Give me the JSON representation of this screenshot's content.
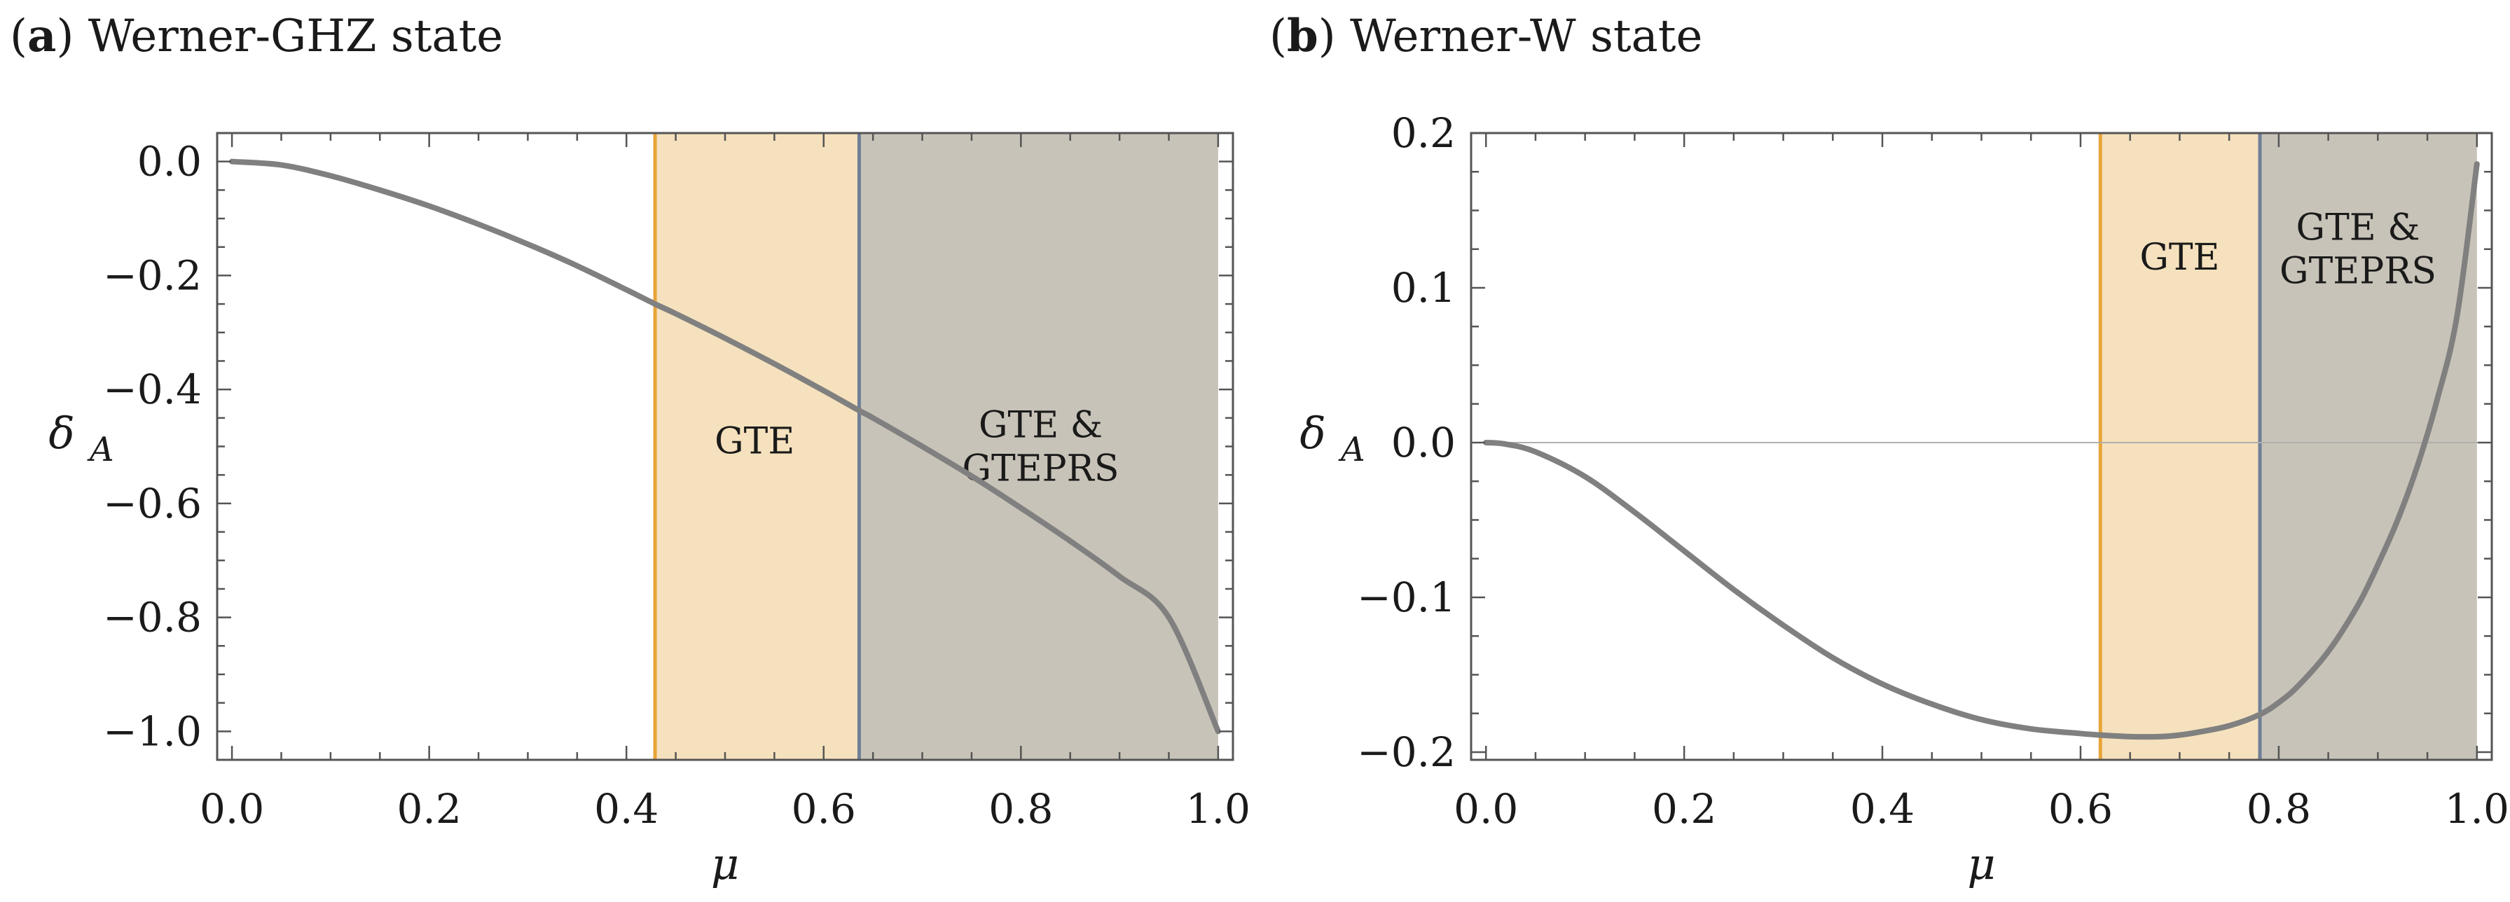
{
  "chart_data": [
    {
      "panel": "a",
      "type": "line",
      "panel_letter": "a",
      "title": "Werner-GHZ state",
      "xlabel": "μ",
      "ylabel_main": "δ",
      "ylabel_sub": "A",
      "xlim": [
        0,
        1
      ],
      "ylim": [
        -1.05,
        0.05
      ],
      "x_ticks": [
        0.0,
        0.2,
        0.4,
        0.6,
        0.8,
        1.0
      ],
      "x_tick_labels": [
        "0.0",
        "0.2",
        "0.4",
        "0.6",
        "0.8",
        "1.0"
      ],
      "y_ticks": [
        0.0,
        -0.2,
        -0.4,
        -0.6,
        -0.8,
        -1.0
      ],
      "y_tick_labels": [
        "0.0",
        "−0.2",
        "−0.4",
        "−0.6",
        "−0.8",
        "−1.0"
      ],
      "zero_line": false,
      "regions": [
        {
          "name": "GTE",
          "label_lines": [
            "GTE"
          ],
          "x_start": 0.429,
          "x_end": 0.636,
          "fill": "#f5e1bd",
          "boundary_color": "#e8a43a",
          "label_pos": [
            0.53,
            -0.49
          ]
        },
        {
          "name": "GTE & GTEPRS",
          "label_lines": [
            "GTE &",
            "GTEPRS"
          ],
          "x_start": 0.636,
          "x_end": 1.0,
          "fill": "#c8c3b8",
          "boundary_color": "#6f7f97",
          "label_pos": [
            0.82,
            -0.5
          ]
        }
      ],
      "series": [
        {
          "name": "δ_A",
          "color": "#808080",
          "x": [
            0.0,
            0.05,
            0.1,
            0.15,
            0.2,
            0.25,
            0.3,
            0.35,
            0.4,
            0.429,
            0.45,
            0.5,
            0.55,
            0.6,
            0.636,
            0.65,
            0.7,
            0.75,
            0.8,
            0.85,
            0.9,
            0.95,
            1.0
          ],
          "y": [
            0.0,
            -0.006,
            -0.025,
            -0.05,
            -0.078,
            -0.11,
            -0.145,
            -0.183,
            -0.225,
            -0.25,
            -0.267,
            -0.31,
            -0.355,
            -0.402,
            -0.437,
            -0.45,
            -0.5,
            -0.552,
            -0.608,
            -0.666,
            -0.728,
            -0.8,
            -1.0
          ]
        }
      ]
    },
    {
      "panel": "b",
      "type": "line",
      "panel_letter": "b",
      "title": "Werner-W state",
      "xlabel": "μ",
      "ylabel_main": "δ",
      "ylabel_sub": "A",
      "xlim": [
        0,
        1
      ],
      "ylim": [
        -0.205,
        0.2
      ],
      "x_ticks": [
        0.0,
        0.2,
        0.4,
        0.6,
        0.8,
        1.0
      ],
      "x_tick_labels": [
        "0.0",
        "0.2",
        "0.4",
        "0.6",
        "0.8",
        "1.0"
      ],
      "y_ticks": [
        0.2,
        0.1,
        0.0,
        -0.1,
        -0.2
      ],
      "y_tick_labels": [
        "0.2",
        "0.1",
        "0.0",
        "−0.1",
        "−0.2"
      ],
      "zero_line": true,
      "regions": [
        {
          "name": "GTE",
          "label_lines": [
            "GTE"
          ],
          "x_start": 0.62,
          "x_end": 0.781,
          "fill": "#f5e1bd",
          "boundary_color": "#e8a43a",
          "label_pos": [
            0.7,
            0.12
          ]
        },
        {
          "name": "GTE & GTEPRS",
          "label_lines": [
            "GTE &",
            "GTEPRS"
          ],
          "x_start": 0.781,
          "x_end": 1.0,
          "fill": "#c8c3b8",
          "boundary_color": "#6f7f97",
          "label_pos": [
            0.88,
            0.125
          ]
        }
      ],
      "series": [
        {
          "name": "δ_A",
          "color": "#808080",
          "x": [
            0.0,
            0.02,
            0.05,
            0.1,
            0.15,
            0.2,
            0.25,
            0.3,
            0.35,
            0.4,
            0.45,
            0.5,
            0.55,
            0.6,
            0.62,
            0.65,
            0.68,
            0.7,
            0.72,
            0.75,
            0.78,
            0.8,
            0.82,
            0.85,
            0.88,
            0.9,
            0.92,
            0.94,
            0.96,
            0.98,
            1.0
          ],
          "y": [
            0.0,
            -0.001,
            -0.006,
            -0.022,
            -0.045,
            -0.07,
            -0.095,
            -0.118,
            -0.139,
            -0.156,
            -0.169,
            -0.179,
            -0.185,
            -0.188,
            -0.189,
            -0.19,
            -0.19,
            -0.189,
            -0.187,
            -0.183,
            -0.176,
            -0.168,
            -0.157,
            -0.135,
            -0.105,
            -0.079,
            -0.05,
            -0.015,
            0.028,
            0.082,
            0.18
          ]
        }
      ]
    }
  ]
}
